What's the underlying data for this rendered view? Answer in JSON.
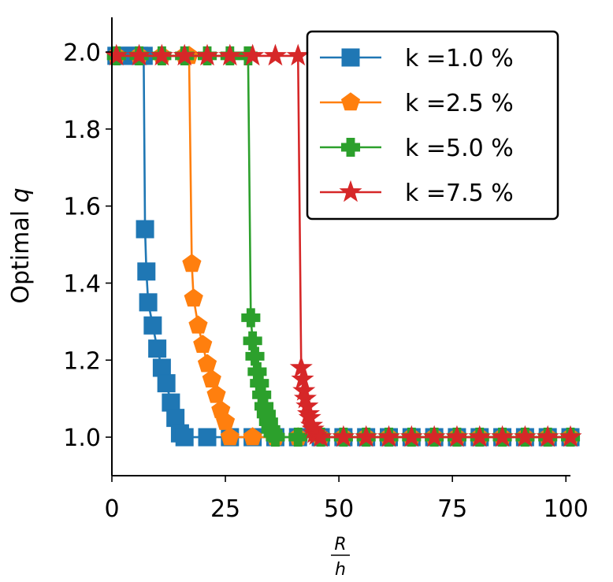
{
  "chart_data": {
    "type": "line",
    "title": "",
    "xlabel_num": "R",
    "xlabel_den": "h",
    "ylabel_prefix": "Optimal ",
    "ylabel_var": "q",
    "xlim": [
      0,
      101
    ],
    "ylim": [
      0.9,
      2.09
    ],
    "xticks": [
      0,
      25,
      50,
      75,
      100
    ],
    "yticks": [
      1.0,
      1.2,
      1.4,
      1.6,
      1.8,
      2.0
    ],
    "xtick_labels": [
      "0",
      "25",
      "50",
      "75",
      "100"
    ],
    "ytick_labels": [
      "1.0",
      "1.2",
      "1.4",
      "1.6",
      "1.8",
      "2.0"
    ],
    "legend_position": "top-right",
    "series": [
      {
        "name": "k =1.0 %",
        "color": "#1f77b4",
        "marker": "square",
        "x": [
          1,
          2,
          3,
          4,
          5,
          6,
          7,
          7.3,
          7.6,
          8,
          9,
          10,
          11,
          12,
          13,
          14,
          15,
          16,
          21,
          26,
          31,
          36,
          41,
          46,
          51,
          56,
          61,
          66,
          71,
          76,
          81,
          86,
          91,
          96,
          101
        ],
        "y": [
          1.99,
          1.99,
          1.99,
          1.99,
          1.99,
          1.99,
          1.99,
          1.54,
          1.43,
          1.35,
          1.29,
          1.23,
          1.18,
          1.14,
          1.09,
          1.05,
          1.01,
          1.0,
          1.0,
          1.0,
          1.0,
          1.0,
          1.0,
          1.0,
          1.0,
          1.0,
          1.0,
          1.0,
          1.0,
          1.0,
          1.0,
          1.0,
          1.0,
          1.0,
          1.0
        ]
      },
      {
        "name": "k =2.5 %",
        "color": "#ff7f0e",
        "marker": "pentagon",
        "x": [
          1,
          6,
          11,
          16,
          17,
          17.6,
          18,
          19,
          20,
          21,
          22,
          23,
          24,
          25,
          26,
          31,
          36,
          41,
          46,
          51,
          56,
          61,
          66,
          71,
          76,
          81,
          86,
          91,
          96,
          101
        ],
        "y": [
          1.99,
          1.99,
          1.99,
          1.99,
          1.99,
          1.45,
          1.36,
          1.29,
          1.24,
          1.19,
          1.15,
          1.11,
          1.07,
          1.04,
          1.0,
          1.0,
          1.0,
          1.0,
          1.0,
          1.0,
          1.0,
          1.0,
          1.0,
          1.0,
          1.0,
          1.0,
          1.0,
          1.0,
          1.0,
          1.0
        ]
      },
      {
        "name": "k =5.0 %",
        "color": "#2ca02c",
        "marker": "plus",
        "x": [
          1,
          6,
          11,
          16,
          21,
          26,
          30,
          30.6,
          31,
          31.5,
          32,
          32.5,
          33,
          33.5,
          34,
          34.5,
          35,
          35.5,
          36,
          41,
          46,
          51,
          56,
          61,
          66,
          71,
          76,
          81,
          86,
          91,
          96,
          101
        ],
        "y": [
          1.99,
          1.99,
          1.99,
          1.99,
          1.99,
          1.99,
          1.99,
          1.31,
          1.25,
          1.21,
          1.17,
          1.14,
          1.11,
          1.08,
          1.06,
          1.04,
          1.02,
          1.01,
          1.0,
          1.0,
          1.0,
          1.0,
          1.0,
          1.0,
          1.0,
          1.0,
          1.0,
          1.0,
          1.0,
          1.0,
          1.0,
          1.0
        ]
      },
      {
        "name": "k =7.5 %",
        "color": "#d62728",
        "marker": "star",
        "x": [
          1,
          6,
          11,
          16,
          21,
          26,
          31,
          36,
          41,
          41.7,
          42,
          42.3,
          42.6,
          43,
          43.3,
          43.6,
          44,
          44.3,
          44.6,
          45,
          46,
          51,
          56,
          61,
          66,
          71,
          76,
          81,
          86,
          91,
          96,
          101
        ],
        "y": [
          1.99,
          1.99,
          1.99,
          1.99,
          1.99,
          1.99,
          1.99,
          1.99,
          1.99,
          1.18,
          1.15,
          1.12,
          1.1,
          1.08,
          1.06,
          1.05,
          1.03,
          1.02,
          1.01,
          1.005,
          1.0,
          1.0,
          1.0,
          1.0,
          1.0,
          1.0,
          1.0,
          1.0,
          1.0,
          1.0,
          1.0,
          1.0
        ]
      }
    ]
  }
}
